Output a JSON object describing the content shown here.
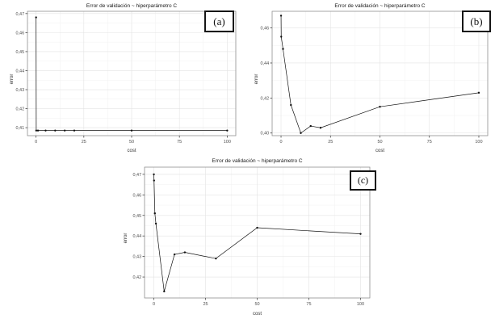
{
  "colors": {
    "page_bg": "#ffffff",
    "panel_bg": "#ffffff",
    "grid_major": "#e3e3e3",
    "grid_minor": "#f2f2f2",
    "panel_border": "#8f8f8f",
    "axis_tick": "#333333",
    "tick_label": "#4d4d4d",
    "text": "#1a1a1a",
    "series": "#111111"
  },
  "chart_data": [
    {
      "type": "line",
      "panel_label": "(a)",
      "title": "Error de validación ~ hiperparámetro C",
      "xlabel": "cost",
      "ylabel": "error",
      "x": [
        0.01,
        0.1,
        1,
        5,
        10,
        15,
        20,
        50,
        100
      ],
      "y": [
        0.468,
        0.4085,
        0.4085,
        0.4085,
        0.4085,
        0.4085,
        0.4085,
        0.4085,
        0.4085
      ],
      "xticks": [
        0,
        25,
        50,
        75,
        100
      ],
      "yticks": [
        0.41,
        0.42,
        0.43,
        0.44,
        0.45,
        0.46,
        0.47
      ],
      "xlim": [
        -4.5,
        104.5
      ],
      "ylim": [
        0.4058,
        0.4712
      ],
      "grid": "major+minor",
      "legend": "none",
      "decimal_separator": ","
    },
    {
      "type": "line",
      "panel_label": "(b)",
      "title": "Error de validación ~ hiperparámetro C",
      "xlabel": "cost",
      "ylabel": "error",
      "x": [
        0.01,
        0.1,
        1,
        5,
        10,
        15,
        20,
        50,
        100
      ],
      "y": [
        0.467,
        0.455,
        0.448,
        0.416,
        0.4,
        0.404,
        0.403,
        0.415,
        0.423
      ],
      "xticks": [
        0,
        25,
        50,
        75,
        100
      ],
      "yticks": [
        0.4,
        0.42,
        0.44,
        0.46
      ],
      "xlim": [
        -4.5,
        104.5
      ],
      "ylim": [
        0.3985,
        0.4695
      ],
      "grid": "major+minor",
      "legend": "none",
      "decimal_separator": ","
    },
    {
      "type": "line",
      "panel_label": "(c)",
      "title": "Error de validación ~ hiperparámetro C",
      "xlabel": "cost",
      "ylabel": "error",
      "x": [
        0.01,
        0.1,
        0.5,
        1,
        5,
        10,
        15,
        30,
        50,
        100
      ],
      "y": [
        0.47,
        0.467,
        0.451,
        0.446,
        0.413,
        0.431,
        0.432,
        0.429,
        0.444,
        0.441
      ],
      "xticks": [
        0,
        25,
        50,
        75,
        100
      ],
      "yticks": [
        0.42,
        0.43,
        0.44,
        0.45,
        0.46,
        0.47
      ],
      "xlim": [
        -4.5,
        104.5
      ],
      "ylim": [
        0.4098,
        0.4735
      ],
      "grid": "major+minor",
      "legend": "none",
      "decimal_separator": ","
    }
  ]
}
